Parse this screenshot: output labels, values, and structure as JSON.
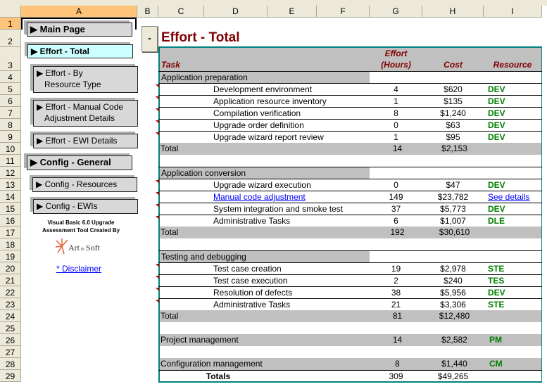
{
  "columns": [
    "A",
    "B",
    "C",
    "D",
    "E",
    "F",
    "G",
    "H",
    "I"
  ],
  "row_numbers": [
    1,
    2,
    3,
    4,
    5,
    6,
    7,
    8,
    9,
    10,
    11,
    12,
    13,
    14,
    15,
    16,
    17,
    18,
    19,
    20,
    21,
    22,
    23,
    24,
    25,
    26,
    27,
    28,
    29
  ],
  "nav": {
    "main_page": "▶ Main Page",
    "effort_total": "▶ Effort - Total",
    "effort_by_resource_1": "▶ Effort - By",
    "effort_by_resource_2": "Resource Type",
    "effort_manual_1": "▶ Effort - Manual Code",
    "effort_manual_2": "Adjustment Details",
    "effort_ewi": "▶ Effort - EWI Details",
    "config_general": "▶ Config - General",
    "config_resources": "▶ Config - Resources",
    "config_ewis": "▶ Config - EWIs",
    "credit_1": "Visual Basic 6.0 Upgrade",
    "credit_2": "Assessment Tool Created By",
    "logo": "ArtinSoft",
    "disclaimer": "* Disclaimer",
    "collapse": "-"
  },
  "title": "Effort - Total",
  "headers": {
    "task": "Task",
    "effort_1": "Effort",
    "effort_2": "(Hours)",
    "cost": "Cost",
    "resource": "Resource"
  },
  "colors": {
    "title": "#800000",
    "resource": "#008000",
    "band": "#c0c0c0",
    "border": "#008080"
  },
  "rows": [
    {
      "row": 4,
      "type": "section",
      "task": "Application preparation"
    },
    {
      "row": 5,
      "type": "task",
      "task": "Development environment",
      "hours": "4",
      "cost": "$620",
      "resource": "DEV"
    },
    {
      "row": 6,
      "type": "task",
      "task": "Application resource inventory",
      "hours": "1",
      "cost": "$135",
      "resource": "DEV"
    },
    {
      "row": 7,
      "type": "task",
      "task": "Compilation verification",
      "hours": "8",
      "cost": "$1,240",
      "resource": "DEV"
    },
    {
      "row": 8,
      "type": "task",
      "task": "Upgrade order definition",
      "hours": "0",
      "cost": "$63",
      "resource": "DEV"
    },
    {
      "row": 9,
      "type": "task",
      "task": "Upgrade wizard report review",
      "hours": "1",
      "cost": "$95",
      "resource": "DEV"
    },
    {
      "row": 10,
      "type": "total",
      "task": "Total",
      "hours": "14",
      "cost": "$2,153"
    },
    {
      "row": 12,
      "type": "section",
      "task": "Application conversion"
    },
    {
      "row": 13,
      "type": "task",
      "task": "Upgrade wizard execution",
      "hours": "0",
      "cost": "$47",
      "resource": "DEV"
    },
    {
      "row": 14,
      "type": "task",
      "task": "Manual code adjustment",
      "hours": "149",
      "cost": "$23,782",
      "resource": "See details",
      "link": true
    },
    {
      "row": 15,
      "type": "task",
      "task": "System integration and smoke test",
      "hours": "37",
      "cost": "$5,773",
      "resource": "DEV"
    },
    {
      "row": 16,
      "type": "task",
      "task": "Administrative Tasks",
      "hours": "6",
      "cost": "$1,007",
      "resource": "DLE"
    },
    {
      "row": 17,
      "type": "total",
      "task": "Total",
      "hours": "192",
      "cost": "$30,610"
    },
    {
      "row": 19,
      "type": "section",
      "task": "Testing and debugging"
    },
    {
      "row": 20,
      "type": "task",
      "task": "Test case creation",
      "hours": "19",
      "cost": "$2,978",
      "resource": "STE"
    },
    {
      "row": 21,
      "type": "task",
      "task": "Test case execution",
      "hours": "2",
      "cost": "$240",
      "resource": "TES"
    },
    {
      "row": 22,
      "type": "task",
      "task": "Resolution of defects",
      "hours": "38",
      "cost": "$5,956",
      "resource": "DEV"
    },
    {
      "row": 23,
      "type": "task",
      "task": "Administrative Tasks",
      "hours": "21",
      "cost": "$3,306",
      "resource": "STE"
    },
    {
      "row": 24,
      "type": "total",
      "task": "Total",
      "hours": "81",
      "cost": "$12,480"
    },
    {
      "row": 26,
      "type": "total",
      "task": "Project management",
      "hours": "14",
      "cost": "$2,582",
      "resource": "PM"
    },
    {
      "row": 28,
      "type": "total",
      "task": "Configuration management",
      "hours": "8",
      "cost": "$1,440",
      "resource": "CM"
    },
    {
      "row": 29,
      "type": "grand",
      "task": "Totals",
      "hours": "309",
      "cost": "$49,265"
    }
  ]
}
